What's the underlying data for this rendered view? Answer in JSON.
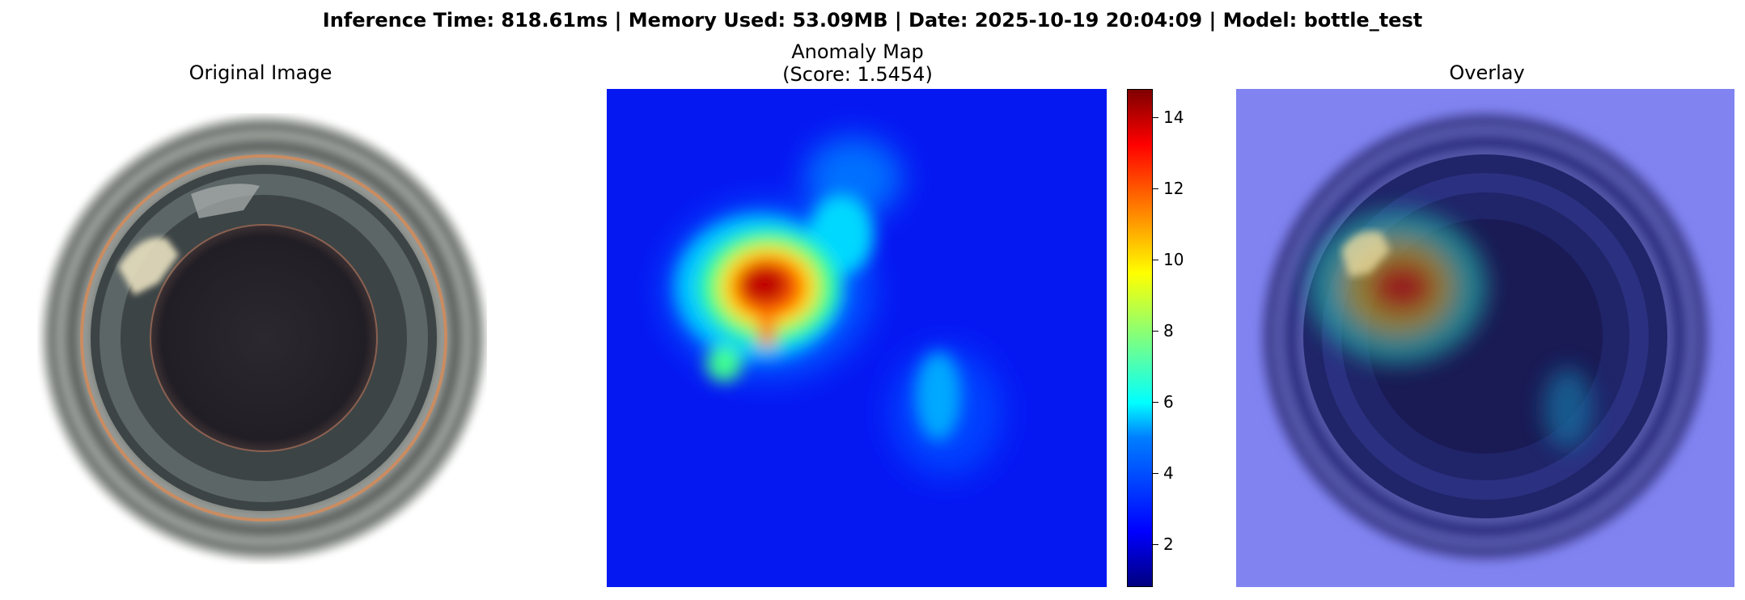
{
  "figure": {
    "suptitle": "Inference Time: 818.61ms | Memory Used: 53.09MB | Date: 2025-10-19 20:04:09 | Model: bottle_test",
    "panels": [
      {
        "title": "Original Image"
      },
      {
        "title_line1": "Anomaly Map",
        "title_line2": "(Score: 1.5454)"
      },
      {
        "title": "Overlay"
      }
    ],
    "colorbar": {
      "colormap": "jet",
      "min": 0.8,
      "max": 14.8,
      "ticks": [
        "2",
        "4",
        "6",
        "8",
        "10",
        "12",
        "14"
      ]
    }
  },
  "colors": {
    "jet_low": "#00007f",
    "jet_high": "#7f0000"
  }
}
